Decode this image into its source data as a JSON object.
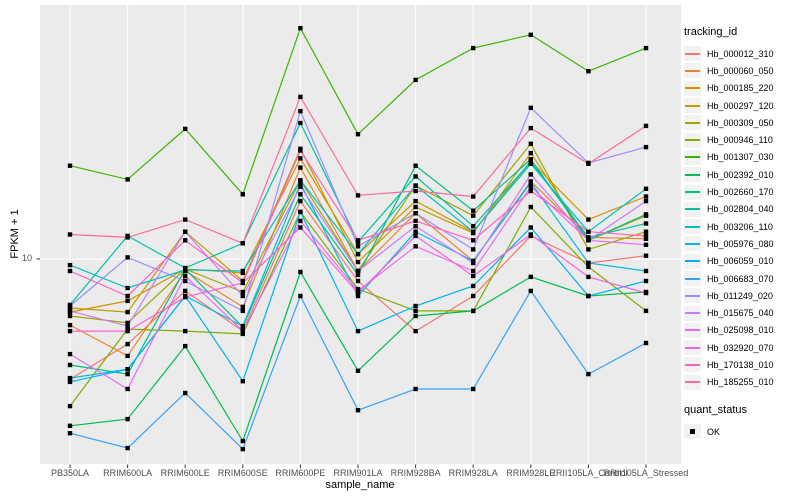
{
  "chart_data": {
    "type": "line",
    "title": "",
    "xlabel": "sample_name",
    "ylabel": "FPKM + 1",
    "y_scale": "log10",
    "y_ticks": [
      10
    ],
    "y_tick_label": "10",
    "grid": "major-on",
    "legend_position": "right",
    "categories": [
      "PB350LA",
      "RRIM600LA",
      "RRIM600LE",
      "RRIM600SE",
      "RRIM600PE",
      "RRIM901LA",
      "RRIM928BA",
      "RRIM928LA",
      "RRIM928LE",
      "RRII105LA_Control",
      "RRII105LA_Stressed"
    ],
    "series": [
      {
        "id": "Hb_000012_310",
        "color": "#F8766D",
        "values": [
          4.83,
          5.97,
          8.24,
          6.46,
          14.2,
          8.75,
          6.46,
          7.99,
          11.5,
          9.76,
          10.2
        ]
      },
      {
        "id": "Hb_000060_050",
        "color": "#EA8331",
        "values": [
          6.7,
          5.56,
          9.3,
          7.48,
          17.4,
          9.3,
          13.2,
          9.88,
          16.0,
          11.4,
          11.3
        ]
      },
      {
        "id": "Hb_000185_220",
        "color": "#D89000",
        "values": [
          7.25,
          7.76,
          9.41,
          9.19,
          18.4,
          10.3,
          14.2,
          11.8,
          18.1,
          12.7,
          14.6
        ]
      },
      {
        "id": "Hb_000297_120",
        "color": "#C09B00",
        "values": [
          7.43,
          7.25,
          11.8,
          8.75,
          19.5,
          9.82,
          13.7,
          11.7,
          19.0,
          11.2,
          13.0
        ]
      },
      {
        "id": "Hb_000309_050",
        "color": "#A3A500",
        "values": [
          7.08,
          6.79,
          9.41,
          8.19,
          16.1,
          9.3,
          15.6,
          13.0,
          20.1,
          10.6,
          11.8
        ]
      },
      {
        "id": "Hb_000946_110",
        "color": "#7CAE00",
        "values": [
          4.1,
          6.54,
          6.46,
          6.35,
          13.3,
          8.34,
          7.3,
          7.3,
          13.7,
          9.53,
          7.3
        ]
      },
      {
        "id": "Hb_001307_030",
        "color": "#39B600",
        "values": [
          17.6,
          16.2,
          22.0,
          14.8,
          40.5,
          21.3,
          29.6,
          35.9,
          38.9,
          31.2,
          35.9
        ]
      },
      {
        "id": "Hb_002392_010",
        "color": "#00BB4E",
        "values": [
          3.64,
          3.79,
          5.9,
          3.32,
          9.24,
          5.08,
          7.08,
          7.3,
          8.97,
          7.99,
          8.19
        ]
      },
      {
        "id": "Hb_002660_170",
        "color": "#00BF7D",
        "values": [
          5.26,
          4.98,
          9.41,
          6.62,
          14.8,
          9.08,
          17.6,
          13.4,
          18.3,
          11.2,
          13.1
        ]
      },
      {
        "id": "Hb_002804_040",
        "color": "#00C1A3",
        "values": [
          7.57,
          11.5,
          9.47,
          11.0,
          22.8,
          11.1,
          16.5,
          12.2,
          18.0,
          11.4,
          12.4
        ]
      },
      {
        "id": "Hb_003206_110",
        "color": "#00BFC4",
        "values": [
          9.64,
          8.39,
          9.36,
          9.3,
          16.1,
          10.3,
          15.6,
          11.8,
          17.8,
          11.8,
          15.3
        ]
      },
      {
        "id": "Hb_005976_080",
        "color": "#00BAE0",
        "values": [
          4.86,
          5.13,
          7.99,
          6.66,
          15.8,
          7.99,
          11.8,
          9.88,
          15.9,
          9.76,
          9.3
        ]
      },
      {
        "id": "Hb_006059_010",
        "color": "#00B0F6",
        "values": [
          4.75,
          5.13,
          7.99,
          4.77,
          13.3,
          6.46,
          7.52,
          8.49,
          12.1,
          7.99,
          8.75
        ]
      },
      {
        "id": "Hb_006683_070",
        "color": "#35A2FF",
        "values": [
          3.48,
          3.18,
          4.44,
          3.16,
          7.99,
          4.0,
          4.55,
          4.55,
          8.24,
          4.98,
          6.01
        ]
      },
      {
        "id": "Hb_011249_020",
        "color": "#9590FF",
        "values": [
          7.52,
          10.1,
          8.75,
          7.3,
          24.5,
          10.8,
          13.2,
          10.6,
          25.0,
          17.9,
          19.7
        ]
      },
      {
        "id": "Hb_015675_040",
        "color": "#C77CFF",
        "values": [
          7.3,
          6.66,
          11.8,
          7.99,
          15.5,
          9.3,
          12.2,
          9.76,
          16.7,
          11.2,
          14.2
        ]
      },
      {
        "id": "Hb_025098_010",
        "color": "#E76BF3",
        "values": [
          5.62,
          4.55,
          9.02,
          6.46,
          12.6,
          8.24,
          10.8,
          9.3,
          15.5,
          11.2,
          10.9
        ]
      },
      {
        "id": "Hb_032920_070",
        "color": "#FA62DB",
        "values": [
          6.46,
          6.46,
          7.94,
          8.65,
          12.1,
          8.14,
          11.5,
          9.02,
          11.6,
          8.97,
          8.14
        ]
      },
      {
        "id": "Hb_170138_010",
        "color": "#FF62BC",
        "values": [
          9.3,
          7.99,
          11.2,
          8.65,
          19.3,
          11.2,
          12.6,
          11.2,
          15.1,
          11.8,
          11.5
        ]
      },
      {
        "id": "Hb_185255_010",
        "color": "#FF6A98",
        "values": [
          11.6,
          11.4,
          12.7,
          11.0,
          26.7,
          14.7,
          15.1,
          14.6,
          22.1,
          17.8,
          22.4
        ]
      }
    ],
    "marker": {
      "shape": "square",
      "color": "#000000",
      "size": 4.4
    },
    "legend": {
      "tracking_title": "tracking_id",
      "quant_title": "quant_status",
      "quant_label": "OK"
    },
    "colors": {
      "panel_bg": "#EBEBEB",
      "grid": "#FFFFFF",
      "tick_mark": "#333333",
      "tick_label": "#4D4D4D",
      "axis_title": "#000000",
      "key_bg": "#F2F2F2",
      "figure_bg": "#FFFFFF"
    }
  }
}
